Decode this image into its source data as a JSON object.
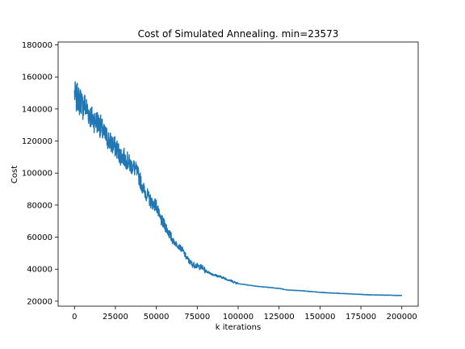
{
  "chart_data": {
    "type": "line",
    "title": "Cost of Simulated Annealing. min=23573",
    "xlabel": "k iterations",
    "ylabel": "Cost",
    "xlim": [
      -10000,
      210000
    ],
    "ylim": [
      16900,
      181800
    ],
    "x_ticks": [
      0,
      25000,
      50000,
      75000,
      100000,
      125000,
      150000,
      175000,
      200000
    ],
    "y_ticks": [
      20000,
      40000,
      60000,
      80000,
      100000,
      120000,
      140000,
      160000,
      180000
    ],
    "grid": false,
    "legend": "none",
    "line_color": "#1f77b4",
    "series": [
      {
        "x": [
          0,
          1000,
          2000,
          3000,
          4000,
          5000,
          6000,
          8000,
          10000,
          12000,
          14000,
          16000,
          18000,
          20000,
          22000,
          24000,
          26000,
          28000,
          30000,
          32000,
          34000,
          36000,
          38000,
          40000,
          42000,
          44000,
          46000,
          48000,
          50000,
          52000,
          54000,
          56000,
          58000,
          60000,
          62000,
          64000,
          66000,
          68000,
          70000,
          72000,
          75000,
          78000,
          80000,
          85000,
          90000,
          95000,
          100000,
          110000,
          120000,
          125000,
          130000,
          140000,
          150000,
          160000,
          170000,
          180000,
          190000,
          200000
        ],
        "y": [
          150000,
          146000,
          148000,
          144000,
          146000,
          141000,
          143000,
          139000,
          135000,
          133000,
          132000,
          129000,
          124000,
          122000,
          119000,
          117000,
          115000,
          111000,
          110000,
          108000,
          105000,
          104000,
          101000,
          96000,
          90000,
          87000,
          83000,
          81000,
          80000,
          72000,
          69000,
          66000,
          62000,
          58000,
          56000,
          54000,
          52000,
          48000,
          45000,
          43000,
          42000,
          41000,
          39000,
          36500,
          35000,
          33000,
          31000,
          29500,
          28500,
          28000,
          27000,
          26500,
          25500,
          25000,
          24500,
          24000,
          23800,
          23573
        ]
      }
    ]
  }
}
